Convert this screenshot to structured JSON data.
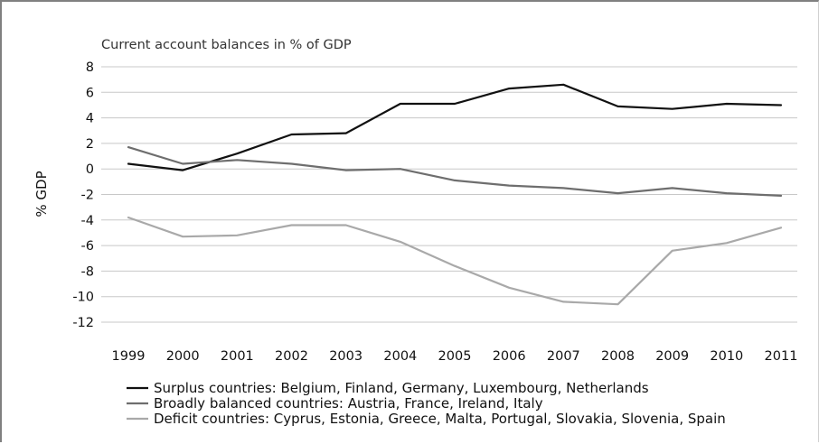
{
  "chart_data": {
    "type": "line",
    "title": "Current account balances in % of GDP",
    "xlabel": "",
    "ylabel": "% GDP",
    "ylim": [
      -12,
      8
    ],
    "yticks": [
      8,
      6,
      4,
      2,
      0,
      -2,
      -4,
      -6,
      -8,
      -10,
      -12
    ],
    "grid": true,
    "legend_position": "bottom",
    "x": [
      "1999",
      "2000",
      "2001",
      "2002",
      "2003",
      "2004",
      "2005",
      "2006",
      "2007",
      "2008",
      "2009",
      "2010",
      "2011"
    ],
    "series": [
      {
        "name": "Surplus countries: Belgium, Finland, Germany, Luxembourg, Netherlands",
        "color": "#111111",
        "values": [
          0.4,
          -0.1,
          1.2,
          2.7,
          2.8,
          5.1,
          5.1,
          6.3,
          6.6,
          4.9,
          4.7,
          5.1,
          5.0
        ]
      },
      {
        "name": "Broadly balanced countries: Austria, France, Ireland, Italy",
        "color": "#6e6e6e",
        "values": [
          1.7,
          0.4,
          0.7,
          0.4,
          -0.1,
          0.0,
          -0.9,
          -1.3,
          -1.5,
          -1.9,
          -1.5,
          -1.9,
          -2.1
        ]
      },
      {
        "name": "Deficit countries: Cyprus, Estonia, Greece, Malta, Portugal, Slovakia, Slovenia, Spain",
        "color": "#a9a9a9",
        "values": [
          -3.8,
          -5.3,
          -5.2,
          -4.4,
          -4.4,
          -5.7,
          -7.6,
          -9.3,
          -10.4,
          -10.6,
          -6.4,
          -5.8,
          -4.6
        ]
      }
    ]
  }
}
